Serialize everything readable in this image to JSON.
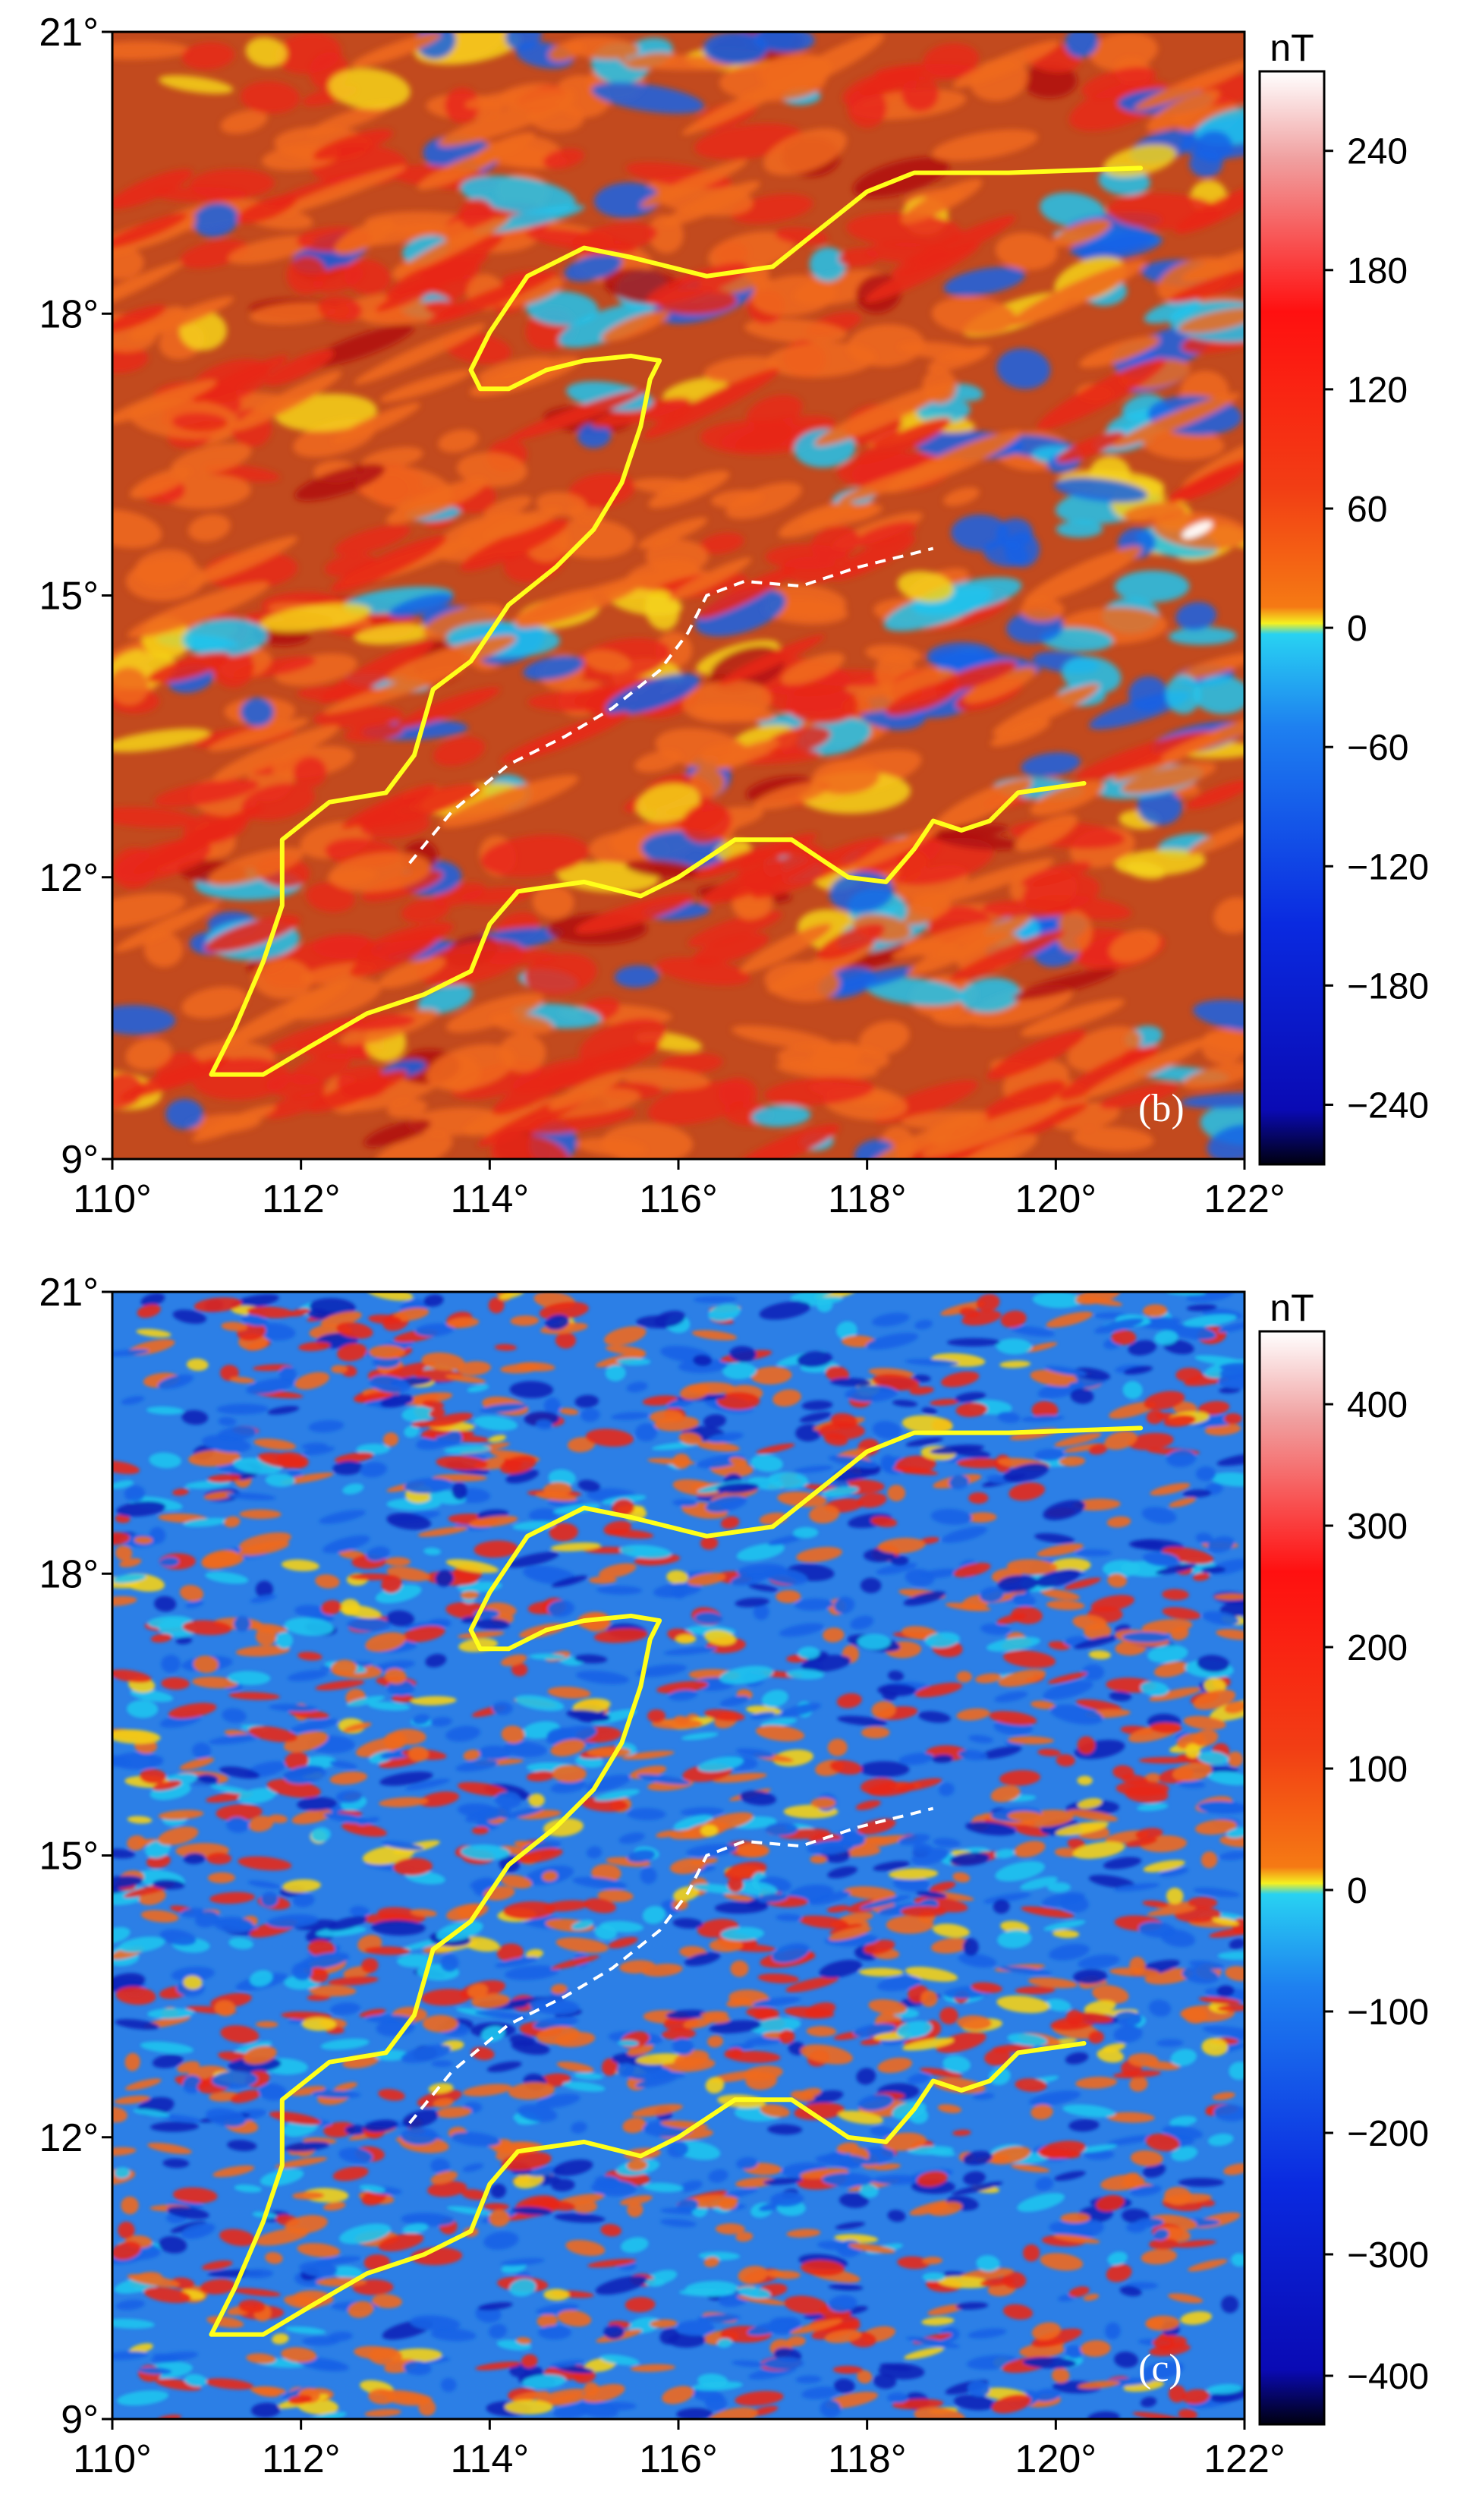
{
  "panels": [
    {
      "id": "b",
      "tag": "(b)",
      "unit": "nT",
      "colorbar": {
        "ticks": [
          240,
          180,
          120,
          60,
          0,
          -60,
          -120,
          -180,
          -240
        ],
        "tick_labels": [
          "240",
          "180",
          "120",
          "60",
          "0",
          "−60",
          "−120",
          "−180",
          "−240"
        ],
        "range": [
          -270,
          280
        ]
      },
      "field_style": "smooth",
      "background_bias": 0.35
    },
    {
      "id": "c",
      "tag": "(c)",
      "unit": "nT",
      "colorbar": {
        "ticks": [
          400,
          300,
          200,
          100,
          0,
          -100,
          -200,
          -300,
          -400
        ],
        "tick_labels": [
          "400",
          "300",
          "200",
          "100",
          "0",
          "−100",
          "−200",
          "−300",
          "−400"
        ],
        "range": [
          -440,
          460
        ]
      },
      "field_style": "busy",
      "background_bias": 0.05
    }
  ],
  "axes": {
    "x_ticks": [
      110,
      112,
      114,
      116,
      118,
      120,
      122
    ],
    "x_labels": [
      "110°",
      "112°",
      "114°",
      "116°",
      "118°",
      "120°",
      "122°"
    ],
    "y_ticks": [
      21,
      18,
      15,
      12,
      9
    ],
    "y_labels": [
      "21°",
      "18°",
      "15°",
      "12°",
      "9°"
    ],
    "lon_range": [
      110,
      122
    ],
    "lat_range": [
      9,
      21
    ]
  },
  "overlays": {
    "yellow_outline_color": "#ffff1a",
    "dashed_line_color": "#ffffff",
    "yellow_outline_lonlat": [
      [
        111.05,
        9.9
      ],
      [
        111.5,
        9.9
      ],
      [
        112.0,
        10.2
      ],
      [
        112.5,
        10.5
      ],
      [
        113.0,
        10.7
      ],
      [
        113.6,
        10.9
      ],
      [
        113.9,
        11.2
      ],
      [
        114.0,
        11.6
      ],
      [
        114.3,
        11.9
      ],
      [
        115.0,
        11.95
      ],
      [
        115.5,
        11.8
      ],
      [
        116.0,
        12.0
      ],
      [
        116.8,
        12.4
      ],
      [
        117.4,
        12.3
      ],
      [
        117.9,
        12.0
      ],
      [
        118.2,
        12.0
      ],
      [
        118.5,
        12.4
      ],
      [
        118.8,
        12.5
      ],
      [
        119.1,
        12.5
      ],
      [
        119.3,
        12.6
      ],
      [
        119.6,
        12.9
      ],
      [
        120.2,
        13.0
      ],
      [
        120.2,
        13.0
      ],
      [
        119.6,
        12.9
      ],
      [
        119.3,
        12.6
      ],
      [
        119.1,
        12.5
      ],
      [
        118.8,
        12.5
      ],
      [
        118.5,
        12.4
      ],
      [
        118.2,
        12.0
      ],
      [
        117.9,
        12.0
      ],
      [
        117.4,
        12.3
      ],
      [
        116.8,
        12.4
      ],
      [
        116.0,
        12.0
      ],
      [
        115.5,
        11.8
      ],
      [
        115.0,
        11.95
      ],
      [
        114.3,
        11.9
      ],
      [
        114.0,
        11.6
      ],
      [
        113.9,
        11.2
      ],
      [
        113.6,
        10.9
      ],
      [
        113.0,
        10.7
      ],
      [
        112.5,
        10.5
      ],
      [
        112.0,
        10.2
      ],
      [
        111.6,
        10.0
      ]
    ],
    "yellow_path_main": [
      [
        111.05,
        9.9
      ],
      [
        111.3,
        10.4
      ],
      [
        111.6,
        11.1
      ],
      [
        111.8,
        11.7
      ],
      [
        111.8,
        12.4
      ],
      [
        112.3,
        12.8
      ],
      [
        112.9,
        12.9
      ],
      [
        113.2,
        13.3
      ],
      [
        113.4,
        14.0
      ],
      [
        113.8,
        14.3
      ],
      [
        114.2,
        14.9
      ],
      [
        114.7,
        15.3
      ],
      [
        115.1,
        15.7
      ],
      [
        115.4,
        16.2
      ],
      [
        115.6,
        16.8
      ],
      [
        115.7,
        17.3
      ],
      [
        115.8,
        17.5
      ],
      [
        115.5,
        17.55
      ],
      [
        115.0,
        17.5
      ],
      [
        114.6,
        17.4
      ],
      [
        114.2,
        17.2
      ],
      [
        113.9,
        17.2
      ],
      [
        113.8,
        17.4
      ],
      [
        114.0,
        17.8
      ],
      [
        114.4,
        18.4
      ],
      [
        115.0,
        18.7
      ],
      [
        115.5,
        18.6
      ],
      [
        116.3,
        18.4
      ],
      [
        117.0,
        18.5
      ],
      [
        117.5,
        18.9
      ],
      [
        118.0,
        19.3
      ],
      [
        118.5,
        19.5
      ],
      [
        119.5,
        19.5
      ],
      [
        120.9,
        19.55
      ]
    ],
    "yellow_path_south": [
      [
        111.05,
        9.9
      ],
      [
        111.6,
        9.9
      ],
      [
        112.1,
        10.2
      ],
      [
        112.7,
        10.55
      ],
      [
        113.3,
        10.75
      ],
      [
        113.8,
        11.0
      ],
      [
        114.0,
        11.5
      ],
      [
        114.3,
        11.85
      ],
      [
        115.0,
        11.95
      ],
      [
        115.6,
        11.8
      ],
      [
        116.0,
        12.0
      ],
      [
        116.6,
        12.4
      ],
      [
        117.2,
        12.4
      ],
      [
        117.8,
        12.0
      ],
      [
        118.2,
        11.95
      ],
      [
        118.5,
        12.3
      ],
      [
        118.7,
        12.6
      ],
      [
        119.0,
        12.5
      ],
      [
        119.3,
        12.6
      ],
      [
        119.6,
        12.9
      ],
      [
        120.3,
        13.0
      ]
    ],
    "dashed_path": [
      [
        113.15,
        12.15
      ],
      [
        113.6,
        12.7
      ],
      [
        114.2,
        13.2
      ],
      [
        114.8,
        13.5
      ],
      [
        115.3,
        13.8
      ],
      [
        115.8,
        14.2
      ],
      [
        116.1,
        14.6
      ],
      [
        116.3,
        15.0
      ],
      [
        116.7,
        15.15
      ],
      [
        117.3,
        15.1
      ],
      [
        117.9,
        15.3
      ],
      [
        118.7,
        15.5
      ]
    ]
  }
}
